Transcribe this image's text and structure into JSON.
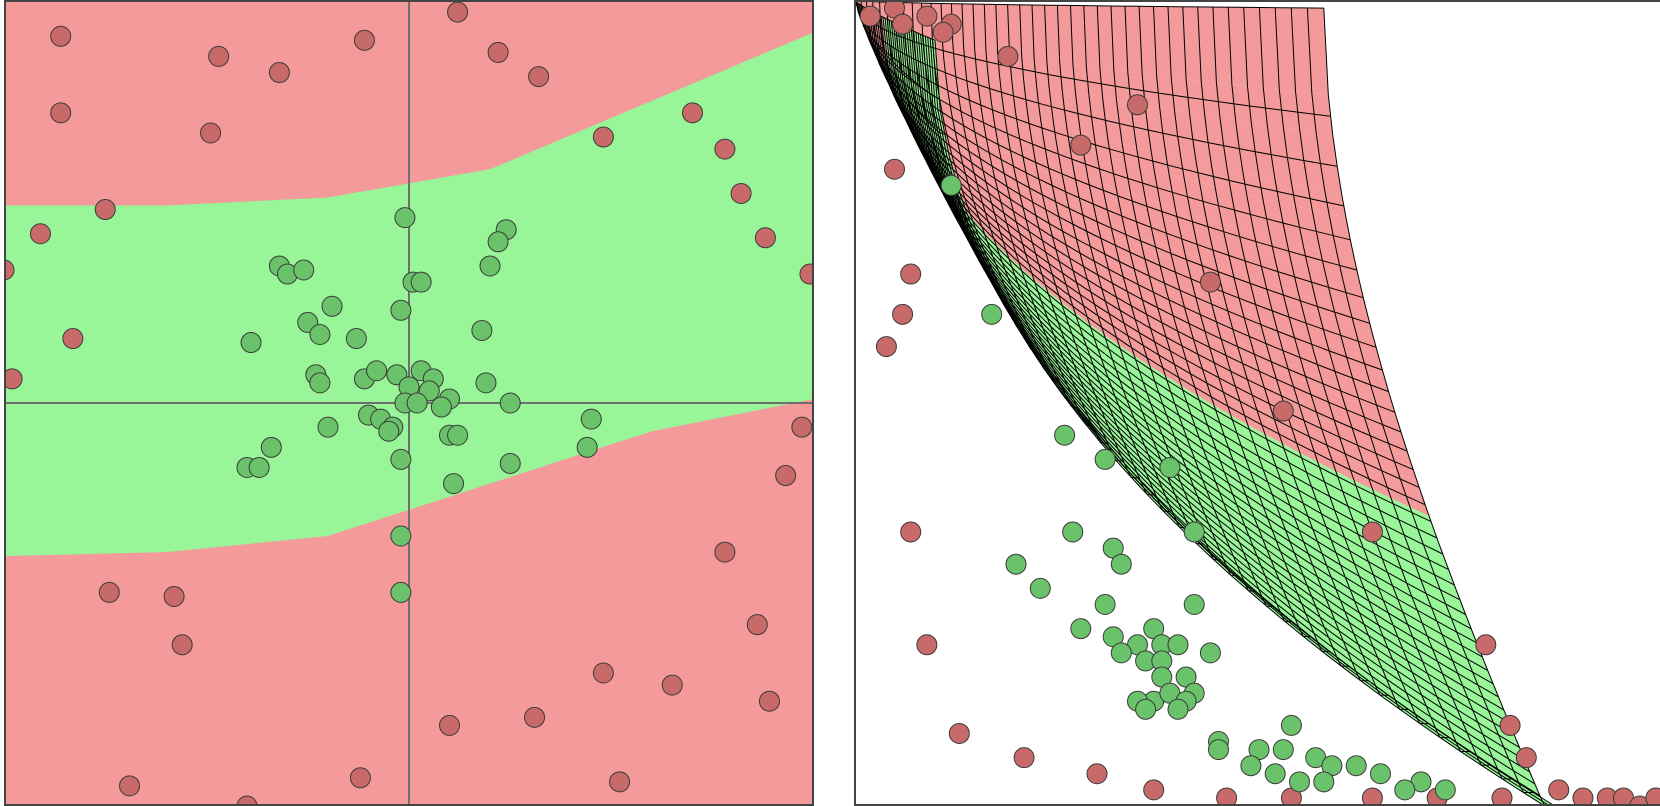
{
  "colors": {
    "class_red_region": "#f49a9a",
    "class_green_region": "#98f598",
    "class_red_point": "#c96a6a",
    "class_green_point": "#6ac26a",
    "axis_line": "#6f6f6f",
    "grid_line": "#000000",
    "frame": "#444444"
  },
  "chart_data": [
    {
      "type": "scatter",
      "title": "",
      "xlabel": "",
      "ylabel": "",
      "xlim": [
        -1,
        1
      ],
      "ylim": [
        -1,
        1
      ],
      "axes_lines_at_origin": true,
      "grid": false,
      "background_regions": {
        "description_classes": [
          "red",
          "green"
        ],
        "green_band_boundaries": {
          "x": [
            -1.0,
            -0.6,
            -0.2,
            0.2,
            0.6,
            1.0
          ],
          "upper": [
            0.49,
            0.49,
            0.51,
            0.58,
            0.75,
            0.92
          ],
          "lower": [
            -0.38,
            -0.37,
            -0.33,
            -0.2,
            -0.07,
            0.01
          ]
        }
      },
      "series": [
        {
          "class": "red",
          "points": [
            [
              -0.86,
              0.91
            ],
            [
              -0.47,
              0.86
            ],
            [
              -0.32,
              0.82
            ],
            [
              -0.11,
              0.9
            ],
            [
              0.12,
              0.97
            ],
            [
              0.22,
              0.87
            ],
            [
              0.32,
              0.81
            ],
            [
              -0.86,
              0.72
            ],
            [
              -0.49,
              0.67
            ],
            [
              0.48,
              0.66
            ],
            [
              0.7,
              0.72
            ],
            [
              0.78,
              0.63
            ],
            [
              0.82,
              0.52
            ],
            [
              -0.75,
              0.48
            ],
            [
              -0.91,
              0.42
            ],
            [
              0.88,
              0.41
            ],
            [
              -1.0,
              0.33
            ],
            [
              0.99,
              0.32
            ],
            [
              -0.83,
              0.16
            ],
            [
              -0.98,
              0.06
            ],
            [
              0.97,
              -0.06
            ],
            [
              0.93,
              -0.18
            ],
            [
              0.78,
              -0.37
            ],
            [
              -0.74,
              -0.47
            ],
            [
              -0.58,
              -0.48
            ],
            [
              -0.56,
              -0.6
            ],
            [
              0.86,
              -0.55
            ],
            [
              0.48,
              -0.67
            ],
            [
              0.65,
              -0.7
            ],
            [
              0.89,
              -0.74
            ],
            [
              0.1,
              -0.8
            ],
            [
              0.31,
              -0.78
            ],
            [
              -0.69,
              -0.95
            ],
            [
              -0.12,
              -0.93
            ],
            [
              0.52,
              -0.94
            ],
            [
              -0.4,
              -1.0
            ]
          ]
        },
        {
          "class": "green",
          "points": [
            [
              -0.01,
              0.46
            ],
            [
              0.24,
              0.43
            ],
            [
              0.22,
              0.4
            ],
            [
              -0.32,
              0.34
            ],
            [
              -0.3,
              0.32
            ],
            [
              -0.26,
              0.33
            ],
            [
              0.2,
              0.34
            ],
            [
              0.01,
              0.3
            ],
            [
              0.03,
              0.3
            ],
            [
              -0.19,
              0.24
            ],
            [
              -0.02,
              0.23
            ],
            [
              -0.25,
              0.2
            ],
            [
              -0.22,
              0.17
            ],
            [
              -0.13,
              0.16
            ],
            [
              0.18,
              0.18
            ],
            [
              -0.39,
              0.15
            ],
            [
              -0.23,
              0.07
            ],
            [
              -0.22,
              0.05
            ],
            [
              -0.11,
              0.06
            ],
            [
              -0.08,
              0.08
            ],
            [
              -0.03,
              0.07
            ],
            [
              0.03,
              0.08
            ],
            [
              0.06,
              0.06
            ],
            [
              0.19,
              0.05
            ],
            [
              0.0,
              0.04
            ],
            [
              0.05,
              0.03
            ],
            [
              -0.01,
              0.0
            ],
            [
              0.02,
              0.0
            ],
            [
              0.1,
              0.01
            ],
            [
              0.08,
              -0.01
            ],
            [
              0.25,
              0.0
            ],
            [
              -0.1,
              -0.03
            ],
            [
              -0.07,
              -0.04
            ],
            [
              -0.04,
              -0.06
            ],
            [
              -0.2,
              -0.06
            ],
            [
              -0.05,
              -0.07
            ],
            [
              0.1,
              -0.08
            ],
            [
              0.12,
              -0.08
            ],
            [
              0.45,
              -0.04
            ],
            [
              0.44,
              -0.11
            ],
            [
              -0.34,
              -0.11
            ],
            [
              -0.02,
              -0.14
            ],
            [
              0.25,
              -0.15
            ],
            [
              -0.4,
              -0.16
            ],
            [
              -0.37,
              -0.16
            ],
            [
              0.11,
              -0.2
            ],
            [
              -0.02,
              -0.33
            ],
            [
              -0.02,
              -0.47
            ]
          ]
        }
      ]
    },
    {
      "type": "scatter",
      "title": "",
      "xlabel": "",
      "ylabel": "",
      "xlim": [
        0,
        1
      ],
      "ylim": [
        0,
        1
      ],
      "grid": "warped mesh",
      "background_regions": {
        "description_classes": [
          "red",
          "green"
        ]
      },
      "series": [
        {
          "class": "red",
          "points": [
            [
              0.02,
              0.98
            ],
            [
              0.05,
              0.99
            ],
            [
              0.06,
              0.97
            ],
            [
              0.09,
              0.98
            ],
            [
              0.12,
              0.97
            ],
            [
              0.11,
              0.96
            ],
            [
              0.19,
              0.93
            ],
            [
              0.35,
              0.87
            ],
            [
              0.28,
              0.82
            ],
            [
              0.05,
              0.79
            ],
            [
              0.44,
              0.65
            ],
            [
              0.07,
              0.66
            ],
            [
              0.06,
              0.61
            ],
            [
              0.04,
              0.57
            ],
            [
              0.53,
              0.49
            ],
            [
              0.64,
              0.34
            ],
            [
              0.07,
              0.34
            ],
            [
              0.09,
              0.2
            ],
            [
              0.78,
              0.2
            ],
            [
              0.13,
              0.09
            ],
            [
              0.21,
              0.06
            ],
            [
              0.3,
              0.04
            ],
            [
              0.81,
              0.1
            ],
            [
              0.83,
              0.06
            ],
            [
              0.37,
              0.02
            ],
            [
              0.46,
              0.01
            ],
            [
              0.54,
              0.01
            ],
            [
              0.64,
              0.01
            ],
            [
              0.72,
              0.01
            ],
            [
              0.8,
              0.01
            ],
            [
              0.87,
              0.02
            ],
            [
              0.9,
              0.01
            ],
            [
              0.93,
              0.01
            ],
            [
              0.95,
              0.01
            ],
            [
              0.97,
              0.0
            ],
            [
              0.99,
              0.01
            ]
          ]
        },
        {
          "class": "green",
          "points": [
            [
              0.12,
              0.77
            ],
            [
              0.17,
              0.61
            ],
            [
              0.26,
              0.46
            ],
            [
              0.31,
              0.43
            ],
            [
              0.39,
              0.42
            ],
            [
              0.27,
              0.34
            ],
            [
              0.32,
              0.32
            ],
            [
              0.42,
              0.34
            ],
            [
              0.2,
              0.3
            ],
            [
              0.33,
              0.3
            ],
            [
              0.23,
              0.27
            ],
            [
              0.31,
              0.25
            ],
            [
              0.42,
              0.25
            ],
            [
              0.28,
              0.22
            ],
            [
              0.32,
              0.21
            ],
            [
              0.35,
              0.2
            ],
            [
              0.37,
              0.22
            ],
            [
              0.38,
              0.2
            ],
            [
              0.4,
              0.2
            ],
            [
              0.33,
              0.19
            ],
            [
              0.36,
              0.18
            ],
            [
              0.38,
              0.18
            ],
            [
              0.44,
              0.19
            ],
            [
              0.38,
              0.16
            ],
            [
              0.41,
              0.16
            ],
            [
              0.42,
              0.14
            ],
            [
              0.37,
              0.13
            ],
            [
              0.39,
              0.14
            ],
            [
              0.35,
              0.13
            ],
            [
              0.41,
              0.13
            ],
            [
              0.36,
              0.12
            ],
            [
              0.4,
              0.12
            ],
            [
              0.54,
              0.1
            ],
            [
              0.45,
              0.08
            ],
            [
              0.5,
              0.07
            ],
            [
              0.53,
              0.07
            ],
            [
              0.57,
              0.06
            ],
            [
              0.45,
              0.07
            ],
            [
              0.59,
              0.05
            ],
            [
              0.49,
              0.05
            ],
            [
              0.52,
              0.04
            ],
            [
              0.62,
              0.05
            ],
            [
              0.65,
              0.04
            ],
            [
              0.55,
              0.03
            ],
            [
              0.58,
              0.03
            ],
            [
              0.7,
              0.03
            ],
            [
              0.73,
              0.02
            ],
            [
              0.68,
              0.02
            ]
          ]
        }
      ]
    }
  ]
}
